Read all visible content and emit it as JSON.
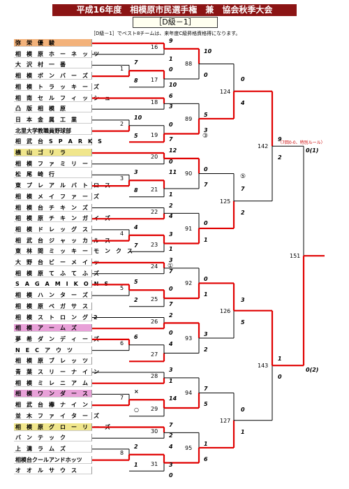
{
  "header": {
    "title": "平成16年度　相模原市民選手権　兼　協会秋季大会",
    "division": "［D級－1］",
    "note": "［D級－1］でベスト8チームは、来年度C級昇格資格得になります。"
  },
  "teams": [
    {
      "name": "弥　栄　優　駿",
      "color": "#f3b27a"
    },
    {
      "name": "相　模　原　ホ　ー　ネ　ッ　ツ",
      "color": "#fff"
    },
    {
      "name": "大　沢　村　一　番",
      "color": "#fff"
    },
    {
      "name": "相　模　ボ　ン　バ　ー　ズ",
      "color": "#fff"
    },
    {
      "name": "相　模　ト　ラ　ッ　キ　ー　ズ",
      "color": "#fff"
    },
    {
      "name": "相　南　セ　ル　フ　ィ　ッ　シ　ュ",
      "color": "#fff"
    },
    {
      "name": "凸　版　相　模　原",
      "color": "#fff"
    },
    {
      "name": "日　本　金　属　工　業",
      "color": "#fff"
    },
    {
      "name": "北里大学教職員野球部",
      "color": "#fff"
    },
    {
      "name": "相　武　台　S　P　A　R　K　S",
      "color": "#fff"
    },
    {
      "name": "横　山　ゴ　リ　ラ",
      "color": "#f0e68c"
    },
    {
      "name": "相　模　フ　ァ　ミ　リ　ー",
      "color": "#fff"
    },
    {
      "name": "松　尾　崎　行",
      "color": "#fff"
    },
    {
      "name": "東　プ　レ　ア　ル　バ　ト　ロ　ス",
      "color": "#fff"
    },
    {
      "name": "相　模　メ　イ　フ　ァ　ー　ズ",
      "color": "#fff"
    },
    {
      "name": "相　模　台　チ　キ　ン　ズ",
      "color": "#fff"
    },
    {
      "name": "相　模　原　チ　キ　ン　ガ　イ　ズ",
      "color": "#fff"
    },
    {
      "name": "相　模　ド　レ　ッ　グ　ス",
      "color": "#fff"
    },
    {
      "name": "相　武　台　ジ　ャ　ッ　カ　ル　ス",
      "color": "#fff"
    },
    {
      "name": "東　林　間　ミ　ッ　キ　ー　モ　ン　ク　ス",
      "color": "#fff"
    },
    {
      "name": "大　野　台　ビ　ー　メ　イ　ッ",
      "color": "#fff"
    },
    {
      "name": "相　模　原　て　ふ　て　ふ　ズ",
      "color": "#fff"
    },
    {
      "name": "S　A　G　A　M　I　K　O　N　S",
      "color": "#fff"
    },
    {
      "name": "相　模　ハ　ン　タ　ー　ズ",
      "color": "#fff"
    },
    {
      "name": "相　模　原　ベ　ガ　サ　ス",
      "color": "#fff"
    },
    {
      "name": "相　模　ス　ト　ロ　ン　グ　2",
      "color": "#fff"
    },
    {
      "name": "相　模　ア　ー　ム　ズ",
      "color": "#e8a0d8"
    },
    {
      "name": "夢　希　ダ　ン　デ　ィ　ー　ズ",
      "color": "#fff"
    },
    {
      "name": "N　E　C　ア　ウ　ツ",
      "color": "#fff"
    },
    {
      "name": "相　模　原　ブ　レ　ッ　ツ",
      "color": "#fff"
    },
    {
      "name": "青　葉　ス　リ　ー　ナ　イ　ン",
      "color": "#fff"
    },
    {
      "name": "相　模　ミ　レ　ニ　ア　ム",
      "color": "#fff"
    },
    {
      "name": "相　模　ワ　ン　ダ　ー　ス",
      "color": "#e8a0d8"
    },
    {
      "name": "相　武　台　欅　ナ　イ　ン",
      "color": "#fff"
    },
    {
      "name": "並　木　フ　ァ　イ　タ　ー　ズ",
      "color": "#fff"
    },
    {
      "name": "相　模　原　グ　ロ　ー　リ　ー　ズ",
      "color": "#f0e68c"
    },
    {
      "name": "バ　ン　テ　ッ　ク",
      "color": "#fff"
    },
    {
      "name": "上　溝　ラ　ム　ズ",
      "color": "#fff"
    },
    {
      "name": "相模台クールアンドホッツ",
      "color": "#fff"
    },
    {
      "name": "オ　オ　ル　サ　ウ　ス",
      "color": "#fff"
    }
  ],
  "match_numbers": [
    "16",
    "1",
    "17",
    "18",
    "2",
    "19",
    "20",
    "3",
    "21",
    "22",
    "4",
    "23",
    "24",
    "5",
    "25",
    "26",
    "6",
    "27",
    "28",
    "7",
    "29",
    "30",
    "8",
    "31",
    "88",
    "89",
    "90",
    "91",
    "92",
    "93",
    "94",
    "95",
    "124",
    "125",
    "126",
    "127",
    "142",
    "143",
    "151"
  ],
  "scores": [
    "9",
    "1",
    "7",
    "0",
    "8",
    "10",
    "6",
    "3",
    "10",
    "0",
    "5",
    "7",
    "12",
    "0",
    "3",
    "11",
    "8",
    "1",
    "2",
    "4",
    "4",
    "3",
    "7",
    "1",
    "3",
    "7",
    "5",
    "0",
    "2",
    "7",
    "2",
    "0",
    "6",
    "4",
    "×",
    "14",
    "○",
    "1",
    "7",
    "2",
    "4",
    "3",
    "2",
    "1",
    "0",
    "3",
    "10",
    "0",
    "5",
    "3",
    "0",
    "7",
    "0",
    "1",
    "0",
    "1",
    "3",
    "2",
    "7",
    "5",
    "1",
    "6",
    "0",
    "4",
    "7",
    "2",
    "3",
    "5",
    "0",
    "1",
    "9",
    "2",
    "1",
    "0",
    "0(1)",
    "0(2)"
  ],
  "marks": [
    "③",
    "⑤",
    "①"
  ],
  "special_note": "（7回0-0、特別ルール）",
  "colors": {
    "title_bg": "#8b1414",
    "line_red": "#e00000",
    "line_black": "#000000"
  }
}
